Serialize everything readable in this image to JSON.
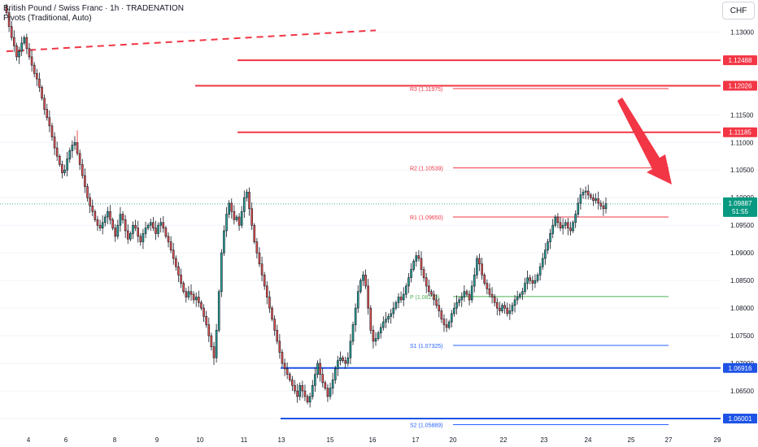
{
  "header": {
    "title": "British Pound / Swiss Franc · 1h · TRADENATION",
    "indicator": "Pivots (Traditional, Auto)",
    "currency": "CHF"
  },
  "colors": {
    "up": "#26a69a",
    "down": "#ef5350",
    "candle_stroke": "#131722",
    "resistance": "#f23645",
    "support": "#1e53e5",
    "pivot_r": "#f23645",
    "pivot_p": "#4caf50",
    "pivot_s": "#2962ff",
    "current_price": "#089981",
    "arrow": "#f23645"
  },
  "icons": {
    "trend_arrow": "down-arrow-icon"
  },
  "chart_data": {
    "type": "candlestick",
    "symbol": "GBPCHF",
    "ylim": [
      1.0575,
      1.1355
    ],
    "y_ticks": [
      "1.13000",
      "1.11500",
      "1.11000",
      "1.10500",
      "1.10000",
      "1.09500",
      "1.09000",
      "1.08500",
      "1.08000",
      "1.07500",
      "1.07000",
      "1.06500",
      "1.06000"
    ],
    "x_labels": [
      "4",
      "6",
      "8",
      "9",
      "10",
      "11",
      "13",
      "15",
      "16",
      "17",
      "20",
      "22",
      "23",
      "24",
      "25",
      "27",
      "29"
    ],
    "resistance_levels": [
      1.12488,
      1.12026,
      1.11185
    ],
    "support_levels": [
      1.06916,
      1.06001
    ],
    "level_labels": [
      "1.12488",
      "1.12026",
      "1.11185",
      "1.06916",
      "1.06001"
    ],
    "pivots": [
      {
        "name": "R3",
        "value": 1.11975,
        "label": "R3 (1.11975)"
      },
      {
        "name": "R2",
        "value": 1.10539,
        "label": "R2 (1.10539)"
      },
      {
        "name": "R1",
        "value": 1.0965,
        "label": "R1 (1.09650)"
      },
      {
        "name": "P",
        "value": 1.0821,
        "label": "P (1.08210)"
      },
      {
        "name": "S1",
        "value": 1.07325,
        "label": "S1 (1.07325)"
      },
      {
        "name": "S2",
        "value": 1.05889,
        "label": "S2 (1.05889)"
      }
    ],
    "current_price": {
      "value": 1.09887,
      "label": "1.09887",
      "countdown": "51:55"
    },
    "trendline": {
      "from": 1.1265,
      "to": 1.1303
    },
    "series_close": [
      1.1335,
      1.131,
      1.129,
      1.1275,
      1.1255,
      1.1265,
      1.128,
      1.129,
      1.127,
      1.1255,
      1.124,
      1.1225,
      1.1215,
      1.12,
      1.118,
      1.116,
      1.1145,
      1.113,
      1.111,
      1.109,
      1.1075,
      1.106,
      1.1045,
      1.105,
      1.107,
      1.1085,
      1.1095,
      1.11,
      1.108,
      1.106,
      1.104,
      1.102,
      1.1,
      1.0985,
      1.0975,
      1.096,
      1.095,
      1.0945,
      1.0955,
      1.0965,
      1.0975,
      1.096,
      1.0945,
      1.093,
      1.095,
      1.097,
      1.096,
      1.094,
      1.0925,
      1.0935,
      1.095,
      1.0945,
      1.093,
      1.092,
      1.0935,
      1.0945,
      1.095,
      1.0955,
      1.0945,
      1.0935,
      1.095,
      1.0955,
      1.0945,
      1.093,
      1.092,
      1.0905,
      1.089,
      1.0875,
      1.086,
      1.0845,
      1.083,
      1.082,
      1.083,
      1.0825,
      1.0815,
      1.082,
      1.081,
      1.08,
      1.0785,
      1.077,
      1.075,
      1.073,
      1.071,
      1.076,
      1.083,
      1.09,
      1.094,
      1.097,
      1.099,
      1.0975,
      1.096,
      1.0965,
      1.095,
      1.0975,
      1.1,
      1.101,
      1.098,
      1.095,
      1.092,
      1.09,
      1.088,
      1.086,
      1.084,
      1.082,
      1.08,
      1.078,
      1.076,
      1.074,
      1.072,
      1.07,
      1.069,
      1.068,
      1.067,
      1.066,
      1.065,
      1.064,
      1.066,
      1.065,
      1.064,
      1.063,
      1.064,
      1.066,
      1.068,
      1.07,
      1.068,
      1.0665,
      1.0655,
      1.064,
      1.0655,
      1.067,
      1.069,
      1.0705,
      1.071,
      1.0705,
      1.07,
      1.071,
      1.074,
      1.077,
      1.08,
      1.083,
      1.085,
      1.086,
      1.084,
      1.08,
      1.076,
      1.074,
      1.0745,
      1.0755,
      1.0765,
      1.0775,
      1.078,
      1.0785,
      1.079,
      1.08,
      1.081,
      1.082,
      1.0815,
      1.0825,
      1.084,
      1.0855,
      1.087,
      1.0885,
      1.0895,
      1.089,
      1.087,
      1.0855,
      1.084,
      1.083,
      1.0825,
      1.0815,
      1.0805,
      1.0795,
      1.078,
      1.077,
      1.0765,
      1.0775,
      1.079,
      1.08,
      1.081,
      1.0815,
      1.082,
      1.083,
      1.0825,
      1.0815,
      1.084,
      1.086,
      1.089,
      1.088,
      1.086,
      1.0845,
      1.0835,
      1.0825,
      1.082,
      1.081,
      1.08,
      1.0795,
      1.0805,
      1.08,
      1.079,
      1.0795,
      1.0805,
      1.0815,
      1.082,
      1.0825,
      1.083,
      1.0845,
      1.0855,
      1.085,
      1.0845,
      1.085,
      1.086,
      1.0875,
      1.089,
      1.0905,
      1.092,
      1.0935,
      1.095,
      1.0965,
      1.0955,
      1.0945,
      1.095,
      1.0955,
      1.0945,
      1.094,
      1.0955,
      1.097,
      1.099,
      1.1005,
      1.101,
      1.1012,
      1.1005,
      1.1,
      1.0995,
      1.0998,
      1.099,
      1.0985,
      1.098,
      1.0989
    ]
  }
}
